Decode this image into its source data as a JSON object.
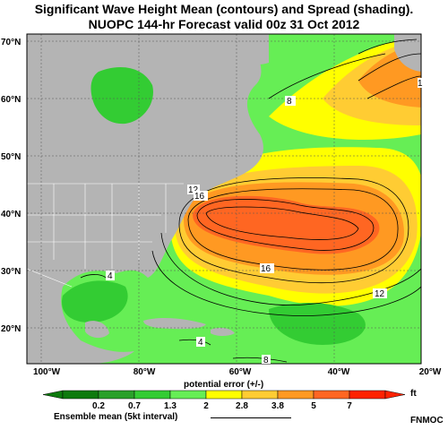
{
  "title_line1": "Significant Wave Height Mean (contours) and Spread (shading).",
  "title_line2": "NUOPC 144-hr Forecast valid 00z 31 Oct 2012",
  "lat_labels": [
    "70°N",
    "60°N",
    "50°N",
    "40°N",
    "30°N",
    "20°N"
  ],
  "lon_labels": [
    "100°W",
    "80°W",
    "60°W",
    "40°W",
    "20°W"
  ],
  "contour_labels": [
    "8",
    "12",
    "16",
    "16",
    "12",
    "4",
    "4",
    "8",
    "1"
  ],
  "colorbar": {
    "title": "potential error (+/-)",
    "unit": "ft",
    "ticks": [
      "0.2",
      "0.7",
      "1.3",
      "2",
      "2.8",
      "3.8",
      "5",
      "7"
    ],
    "colors": [
      "#0d7a0d",
      "#2aa02a",
      "#33cc33",
      "#66ee55",
      "#ffff00",
      "#ffcc33",
      "#ff9922",
      "#ff6622",
      "#ff2200"
    ]
  },
  "ensemble_label": "Ensemble mean (5kt interval)",
  "credit": "FNMOC",
  "colors": {
    "land": "#b4b4b4",
    "border": "#ffffff"
  }
}
